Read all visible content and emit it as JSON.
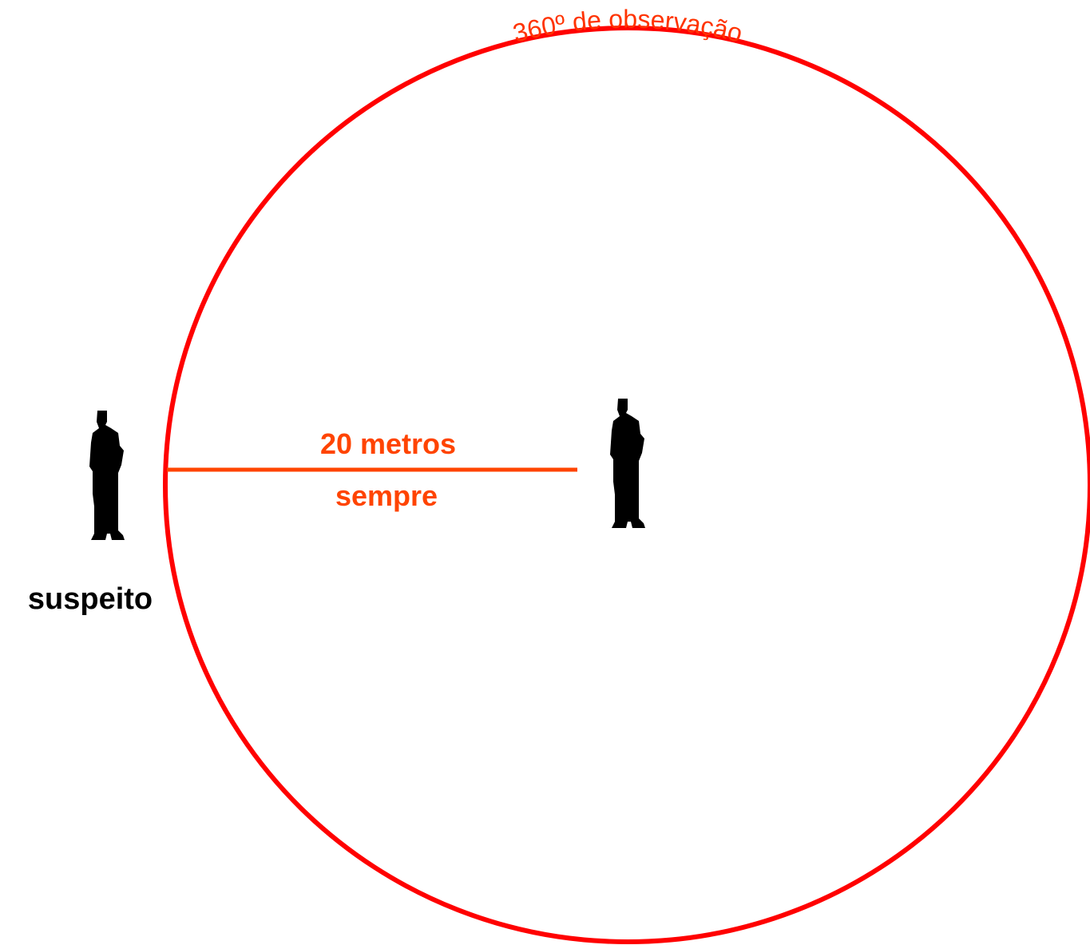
{
  "circle_label": "360º de observação",
  "distance_label": "20 metros",
  "distance_note": "sempre",
  "person_label": "suspeito"
}
